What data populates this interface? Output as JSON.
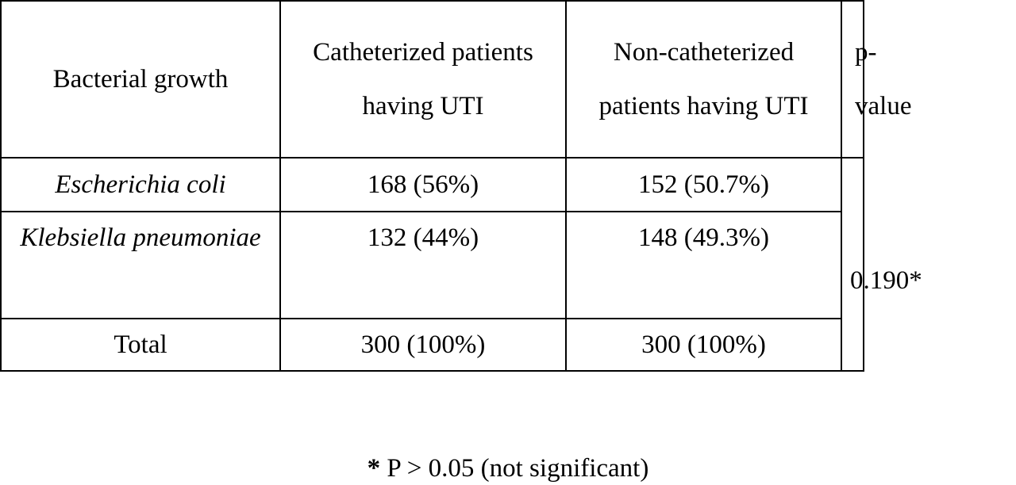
{
  "table": {
    "header": [
      "Bacterial growth",
      "Catheterized patients having UTI",
      "Non-catheterized patients having UTI",
      "p-value"
    ],
    "rows": [
      [
        "Escherichia coli",
        "168 (56%)",
        "152 (50.7%)"
      ],
      [
        "Klebsiella pneumoniae",
        "132 (44%)",
        "148 (49.3%)"
      ],
      [
        "Total",
        "300 (100%)",
        "300 (100%)"
      ]
    ],
    "p_value": "0.190*"
  },
  "footnote": {
    "symbol": "*",
    "text": "P > 0.05 (not significant)"
  }
}
